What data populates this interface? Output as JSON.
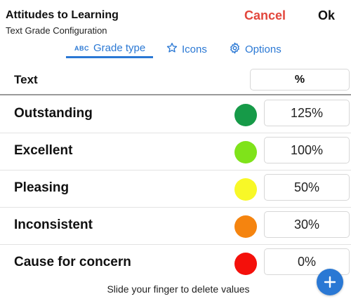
{
  "header": {
    "title": "Attitudes to Learning",
    "subtitle": "Text Grade Configuration",
    "cancel_label": "Cancel",
    "ok_label": "Ok"
  },
  "tabs": [
    {
      "label": "Grade type",
      "icon_text": "ABC",
      "icon": "abc-icon",
      "active": true
    },
    {
      "label": "Icons",
      "icon": "star-icon",
      "active": false
    },
    {
      "label": "Options",
      "icon": "gear-icon",
      "active": false
    }
  ],
  "table": {
    "header_text": "Text",
    "header_percent": "%",
    "rows": [
      {
        "label": "Outstanding",
        "color": "#169a48",
        "value": "125%"
      },
      {
        "label": "Excellent",
        "color": "#7fe31a",
        "value": "100%"
      },
      {
        "label": "Pleasing",
        "color": "#f8f827",
        "value": "50%"
      },
      {
        "label": "Inconsistent",
        "color": "#f5840f",
        "value": "30%"
      },
      {
        "label": "Cause for concern",
        "color": "#f4100b",
        "value": "0%"
      }
    ]
  },
  "footer": {
    "hint": "Slide your finger to delete values",
    "add_icon": "plus-icon"
  },
  "colors": {
    "accent": "#2a78d4",
    "cancel": "#e2463c"
  }
}
